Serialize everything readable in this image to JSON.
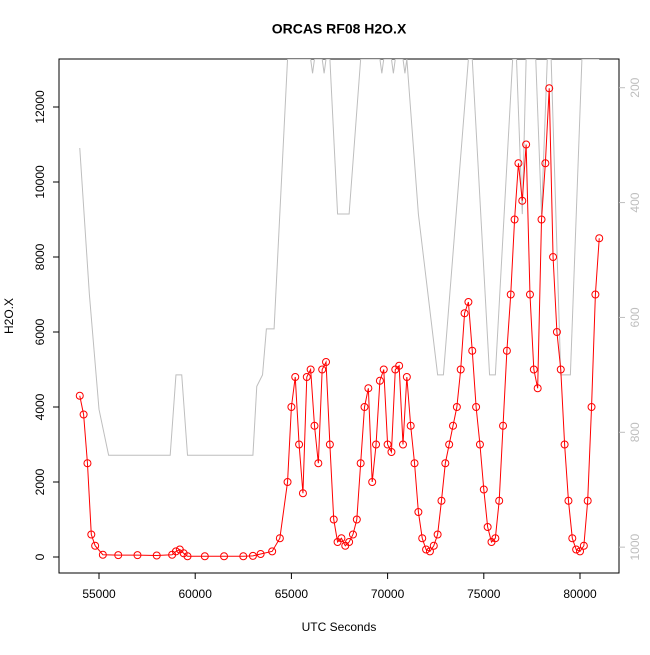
{
  "chart_data": {
    "type": "scatter",
    "title": "ORCAS RF08 H2O.X",
    "x_label": "UTC Seconds",
    "y_label": "H2O.X",
    "xlim": [
      52921,
      82027
    ],
    "xticks": [
      55000,
      60000,
      65000,
      70000,
      75000,
      80000
    ],
    "ylim": [
      -427,
      13280
    ],
    "yticks": [
      0,
      2000,
      4000,
      6000,
      8000,
      10000,
      12000
    ],
    "y2lim": [
      1045,
      150
    ],
    "y2ticks": [
      200,
      400,
      600,
      800,
      1000
    ],
    "series": [
      {
        "name": "H2O.X",
        "color": "#ff0000",
        "mode": "lines+markers",
        "x": [
          54000,
          54200,
          54400,
          54600,
          54800,
          55200,
          56000,
          57000,
          58000,
          58800,
          59000,
          59200,
          59400,
          59600,
          60500,
          61500,
          62500,
          63000,
          63400,
          64000,
          64400,
          64800,
          65000,
          65200,
          65400,
          65600,
          65800,
          66000,
          66200,
          66400,
          66600,
          66800,
          67000,
          67200,
          67400,
          67600,
          67800,
          68000,
          68200,
          68400,
          68600,
          68800,
          69000,
          69200,
          69400,
          69600,
          69800,
          70000,
          70200,
          70400,
          70600,
          70800,
          71000,
          71200,
          71400,
          71600,
          71800,
          72000,
          72200,
          72400,
          72600,
          72800,
          73000,
          73200,
          73400,
          73600,
          73800,
          74000,
          74200,
          74400,
          74600,
          74800,
          75000,
          75200,
          75400,
          75600,
          75800,
          76000,
          76200,
          76400,
          76600,
          76800,
          77000,
          77200,
          77400,
          77600,
          77800,
          78000,
          78200,
          78400,
          78600,
          78800,
          79000,
          79200,
          79400,
          79600,
          79800,
          80000,
          80200,
          80400,
          80600,
          80800,
          81000
        ],
        "values": [
          4300,
          3800,
          2500,
          600,
          300,
          60,
          50,
          50,
          40,
          60,
          150,
          200,
          100,
          20,
          20,
          20,
          20,
          30,
          80,
          150,
          500,
          2000,
          4000,
          4800,
          3000,
          1700,
          4800,
          5000,
          3500,
          2500,
          5000,
          5200,
          3000,
          1000,
          400,
          500,
          300,
          400,
          600,
          1000,
          2500,
          4000,
          4500,
          2000,
          3000,
          4700,
          5000,
          3000,
          2800,
          5000,
          5100,
          3000,
          4800,
          3500,
          2500,
          1200,
          500,
          200,
          150,
          300,
          600,
          1500,
          2500,
          3000,
          3500,
          4000,
          5000,
          6500,
          6800,
          5500,
          4000,
          3000,
          1800,
          800,
          400,
          500,
          1500,
          3500,
          5500,
          7000,
          9000,
          10500,
          9500,
          11000,
          7000,
          5000,
          4500,
          9000,
          10500,
          12500,
          8000,
          6000,
          5000,
          3000,
          1500,
          500,
          200,
          150,
          300,
          1500,
          4000,
          7000,
          8500
        ]
      },
      {
        "color": "#bebebe",
        "mode": "lines",
        "axis": "y2",
        "x": [
          54000,
          54500,
          55000,
          55500,
          58700,
          59000,
          59300,
          59600,
          63000,
          63200,
          63500,
          63700,
          64100,
          64800,
          66000,
          66100,
          66200,
          66600,
          66700,
          66800,
          67000,
          67400,
          68000,
          68600,
          69600,
          69700,
          69800,
          70200,
          70300,
          70400,
          70800,
          70900,
          71000,
          71600,
          72600,
          72900,
          74200,
          74400,
          75300,
          75600,
          76500,
          76700,
          77000,
          77200,
          77700,
          78000,
          78300,
          78500,
          79000,
          79500,
          80100,
          81000
        ],
        "values": [
          305,
          560,
          760,
          840,
          840,
          700,
          700,
          840,
          840,
          720,
          700,
          620,
          620,
          150,
          150,
          175,
          150,
          150,
          175,
          150,
          150,
          420,
          420,
          150,
          150,
          175,
          150,
          150,
          175,
          150,
          150,
          175,
          150,
          420,
          700,
          700,
          150,
          150,
          700,
          700,
          150,
          150,
          420,
          150,
          150,
          420,
          150,
          150,
          700,
          700,
          150,
          150
        ]
      }
    ]
  }
}
